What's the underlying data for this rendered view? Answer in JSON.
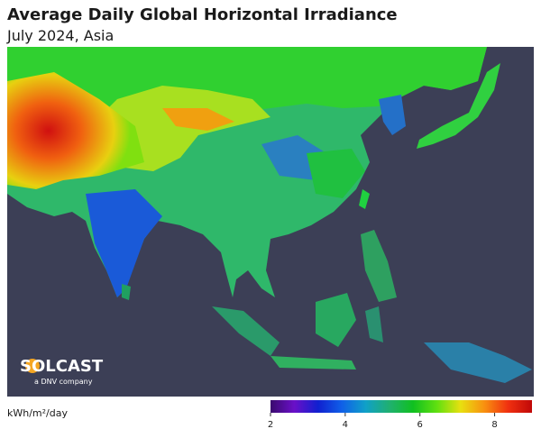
{
  "header": {
    "title": "Average Daily Global Horizontal Irradiance",
    "subtitle": "July 2024, Asia"
  },
  "logo": {
    "name": "SOLCAST",
    "tagline": "a DNV company"
  },
  "colorbar": {
    "label": "kWh/m²/day",
    "range": [
      2,
      9
    ],
    "ticks": [
      2,
      4,
      6,
      8
    ],
    "colors": [
      "#3a0a6e",
      "#6a10c8",
      "#1020d0",
      "#1060e8",
      "#10a0c8",
      "#20b070",
      "#10c020",
      "#60e010",
      "#e8e010",
      "#f89010",
      "#f03010",
      "#c00808"
    ]
  }
}
